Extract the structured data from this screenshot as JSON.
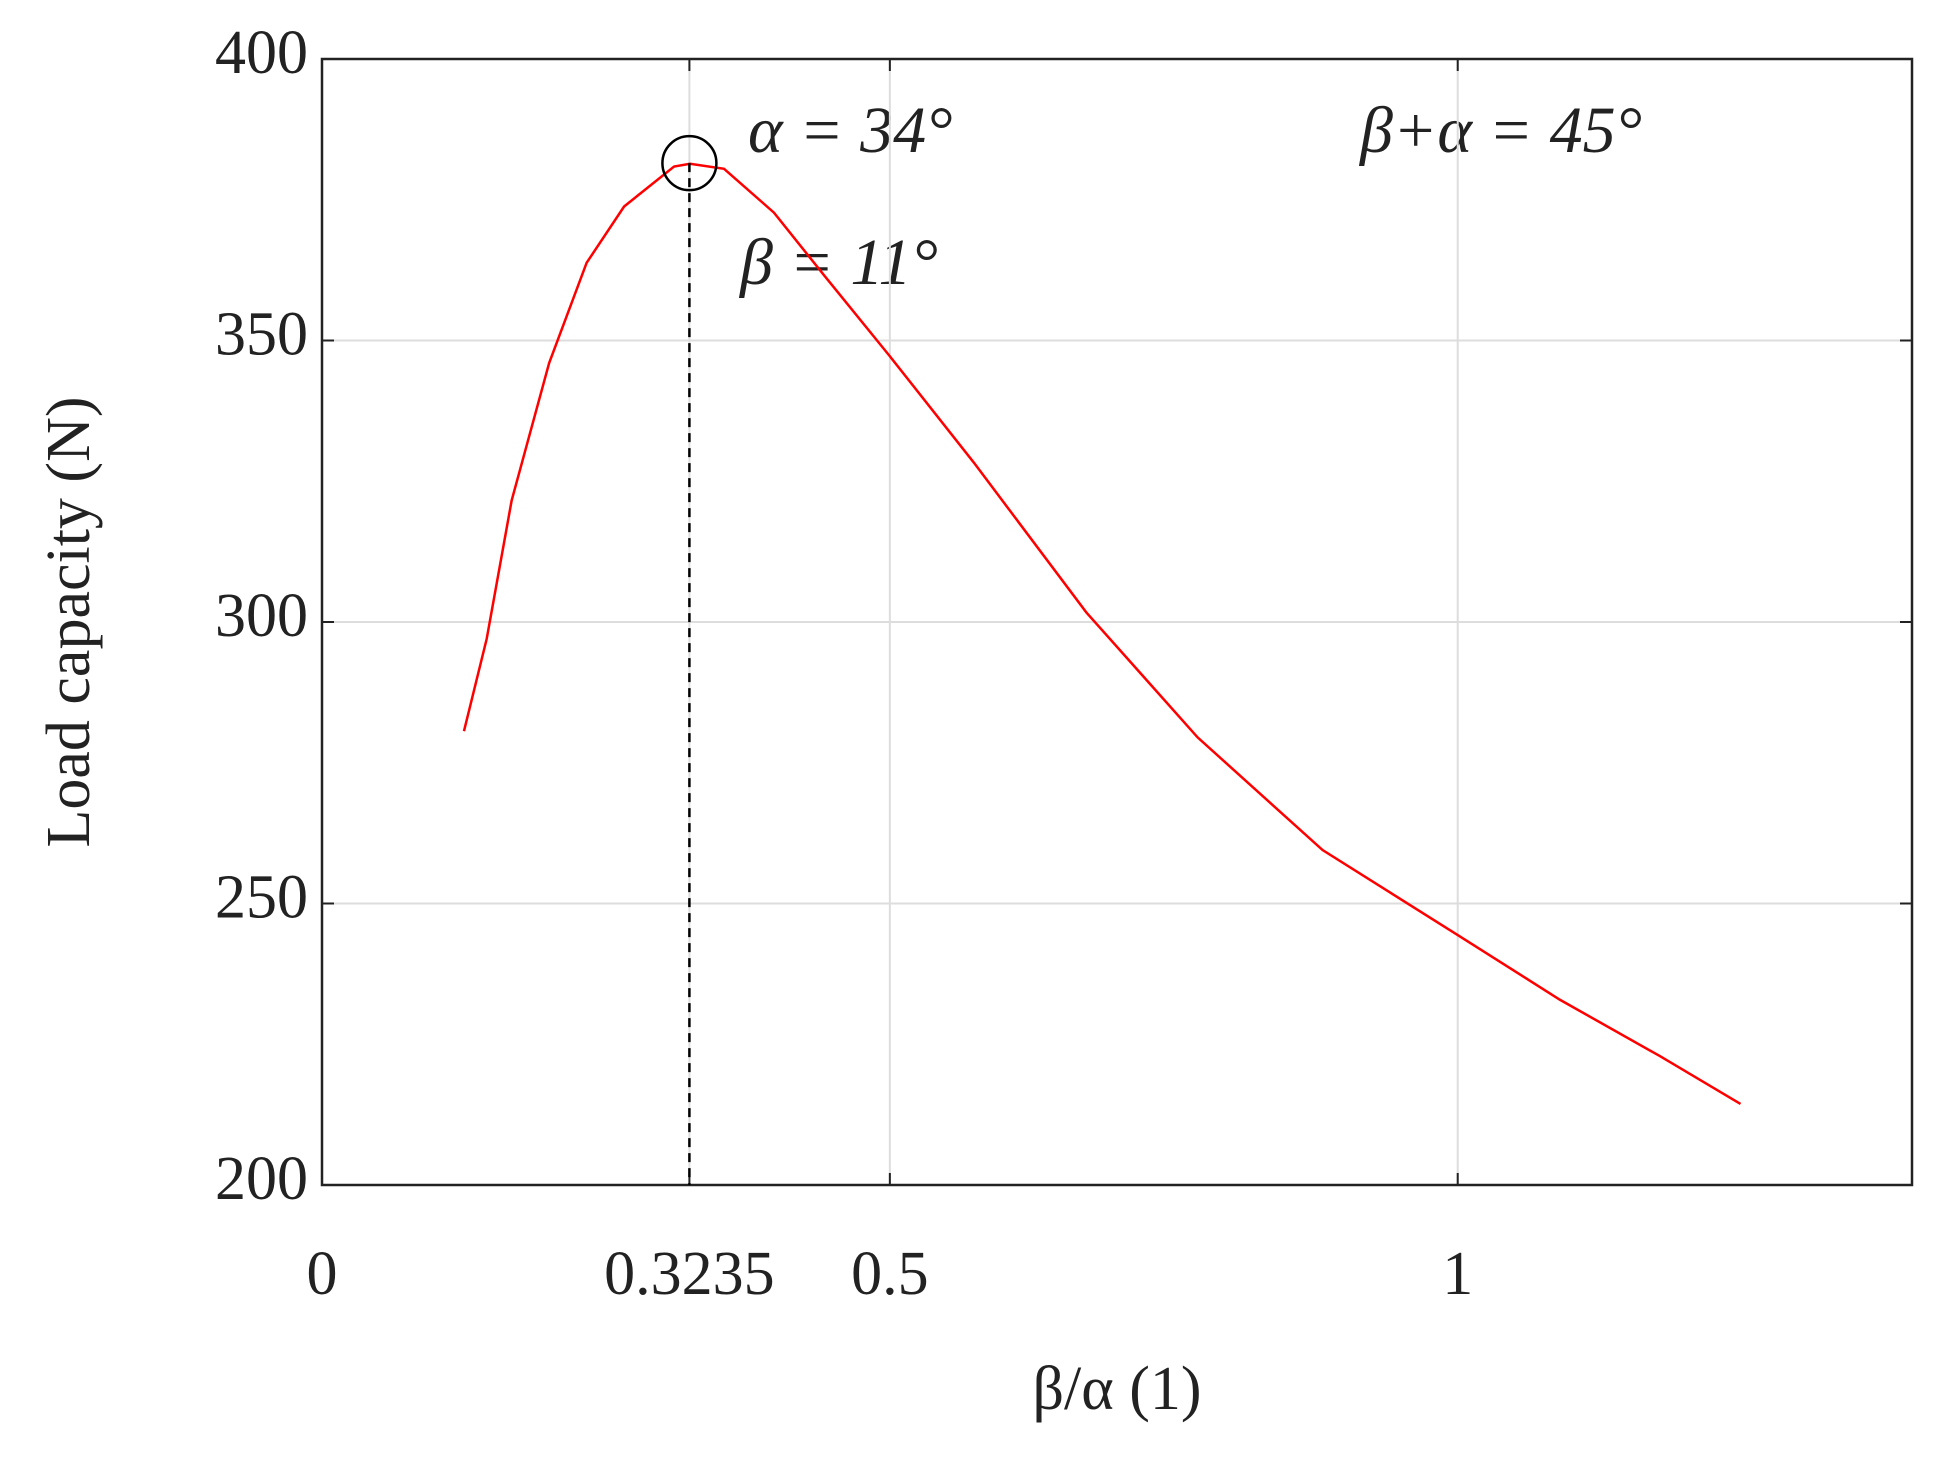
{
  "chart_data": {
    "type": "line",
    "xlabel": "β/α (1)",
    "ylabel": "Load capacity (N)",
    "x": [
      0.125,
      0.145,
      0.167,
      0.2,
      0.233,
      0.266,
      0.31,
      0.324,
      0.354,
      0.398,
      0.442,
      0.5,
      0.574,
      0.673,
      0.771,
      0.881,
      1.0,
      1.09,
      1.178,
      1.249
    ],
    "series": [
      {
        "color": "#ff0000",
        "values": [
          280.6,
          297,
          321.6,
          346,
          363.8,
          373.8,
          380.9,
          381.4,
          380.5,
          372.7,
          361.6,
          347.2,
          328.3,
          301.7,
          279.5,
          259.5,
          244.4,
          232.9,
          222.9,
          214.4
        ]
      }
    ],
    "marker": {
      "x": 0.3235,
      "y": 381.5
    },
    "annotations": [
      "α = 34°",
      "β = 11°",
      "β+α = 45°"
    ],
    "xlim": [
      0,
      1.4
    ],
    "ylim": [
      200,
      400
    ],
    "xticks": [
      0,
      0.3235,
      0.5,
      1
    ],
    "yticks": [
      200,
      250,
      300,
      350,
      400
    ],
    "grid": true
  }
}
